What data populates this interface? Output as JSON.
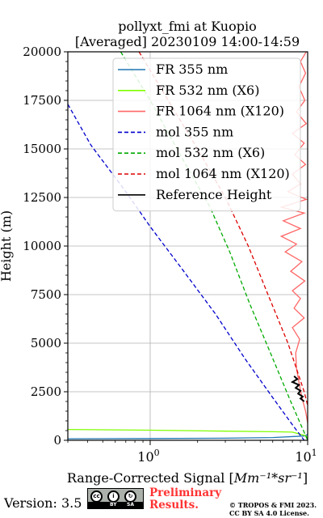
{
  "chart_data": {
    "type": "line",
    "title": "pollyxt_fmi at Kuopio",
    "subtitle": "[Averaged] 20230109 14:00-14:59",
    "xlabel_prefix": "Range-Corrected Signal [",
    "xlabel_math": "Mm^-1*sr^-1",
    "xlabel_suffix": "]",
    "ylabel": "Height (m)",
    "xscale": "log",
    "xlim": [
      0.3,
      10
    ],
    "ylim": [
      0,
      20000
    ],
    "grid": true,
    "legend_position": "top-right",
    "x_ticks": [
      {
        "value": 1,
        "base": "10",
        "exp": "0"
      },
      {
        "value": 10,
        "base": "10",
        "exp": "1"
      }
    ],
    "y_ticks": [
      0,
      2500,
      5000,
      7500,
      10000,
      12500,
      15000,
      17500,
      20000
    ],
    "series": [
      {
        "name": "FR 355 nm",
        "color": "#1f77b4",
        "style": "solid",
        "points": [
          [
            0.3,
            80
          ],
          [
            1,
            90
          ],
          [
            3,
            110
          ],
          [
            6,
            140
          ],
          [
            9.5,
            220
          ],
          [
            10,
            300
          ]
        ]
      },
      {
        "name": "FR 532 nm (X6)",
        "color": "#7fff00",
        "style": "solid",
        "points": [
          [
            0.3,
            560
          ],
          [
            1,
            520
          ],
          [
            3,
            470
          ],
          [
            6,
            440
          ],
          [
            8,
            420
          ],
          [
            9.6,
            250
          ],
          [
            10,
            150
          ]
        ]
      },
      {
        "name": "FR 1064 nm (X120)",
        "color": "#ff6666",
        "style": "solid",
        "points": [
          [
            10,
            900
          ],
          [
            9.7,
            1500
          ],
          [
            9.2,
            2200
          ],
          [
            8.8,
            3000
          ],
          [
            8.5,
            3700
          ],
          [
            8.4,
            4500
          ],
          [
            8.9,
            5200
          ],
          [
            8.0,
            5800
          ],
          [
            9.5,
            6300
          ],
          [
            8.2,
            6800
          ],
          [
            9.0,
            7300
          ],
          [
            8.0,
            7700
          ],
          [
            9.6,
            8200
          ],
          [
            7.8,
            8700
          ],
          [
            9.2,
            9200
          ],
          [
            7.2,
            9700
          ],
          [
            8.5,
            10100
          ],
          [
            6.8,
            10500
          ],
          [
            9.0,
            10900
          ],
          [
            7.0,
            11300
          ],
          [
            9.5,
            11700
          ],
          [
            6.8,
            12000
          ],
          [
            9.8,
            12400
          ],
          [
            7.5,
            12800
          ],
          [
            9.0,
            13200
          ],
          [
            8.0,
            13700
          ],
          [
            9.7,
            14200
          ],
          [
            8.3,
            14700
          ],
          [
            9.5,
            15300
          ],
          [
            8.0,
            15800
          ],
          [
            9.8,
            16300
          ],
          [
            8.5,
            16900
          ],
          [
            9.6,
            17500
          ],
          [
            8.8,
            18200
          ],
          [
            9.7,
            18900
          ],
          [
            9.0,
            19500
          ],
          [
            9.8,
            20000
          ]
        ]
      },
      {
        "name": "mol 355 nm",
        "color": "#0000cc",
        "style": "dashed",
        "points": [
          [
            0.3,
            17300
          ],
          [
            0.42,
            15200
          ],
          [
            0.7,
            12800
          ],
          [
            1.0,
            11000
          ],
          [
            1.6,
            8800
          ],
          [
            2.6,
            6500
          ],
          [
            4.0,
            4200
          ],
          [
            6.0,
            2200
          ],
          [
            8.0,
            800
          ],
          [
            9.5,
            0
          ]
        ]
      },
      {
        "name": "mol 532 nm (X6)",
        "color": "#00aa00",
        "style": "dashed",
        "points": [
          [
            0.65,
            20000
          ],
          [
            1.0,
            17500
          ],
          [
            1.6,
            14500
          ],
          [
            2.4,
            12000
          ],
          [
            3.2,
            9700
          ],
          [
            4.3,
            7000
          ],
          [
            5.8,
            4500
          ],
          [
            7.8,
            2000
          ],
          [
            10,
            0
          ]
        ]
      },
      {
        "name": "mol 1064 nm (X120)",
        "color": "#dd0000",
        "style": "dashed",
        "points": [
          [
            0.85,
            20000
          ],
          [
            1.3,
            17500
          ],
          [
            2.0,
            15000
          ],
          [
            3.0,
            12500
          ],
          [
            4.2,
            10000
          ],
          [
            5.6,
            7500
          ],
          [
            7.5,
            5000
          ],
          [
            9.5,
            2500
          ],
          [
            10,
            1800
          ]
        ]
      },
      {
        "name": "Reference Height",
        "color": "#000000",
        "style": "solid",
        "points": [
          [
            8.2,
            3300
          ],
          [
            8.6,
            3150
          ],
          [
            8.0,
            3000
          ],
          [
            8.8,
            2850
          ],
          [
            8.4,
            2700
          ],
          [
            9.0,
            2550
          ],
          [
            8.7,
            2400
          ],
          [
            9.3,
            2250
          ],
          [
            9.0,
            2150
          ],
          [
            9.5,
            2000
          ]
        ]
      }
    ]
  },
  "footer": {
    "version": "Version: 3.5",
    "badge_by": "BY",
    "badge_sa": "SA",
    "preliminary_line1": "Preliminary",
    "preliminary_line2": "Results.",
    "copyright_line1": "© TROPOS & FMI 2023.",
    "copyright_line2": "CC BY SA 4.0 License."
  }
}
